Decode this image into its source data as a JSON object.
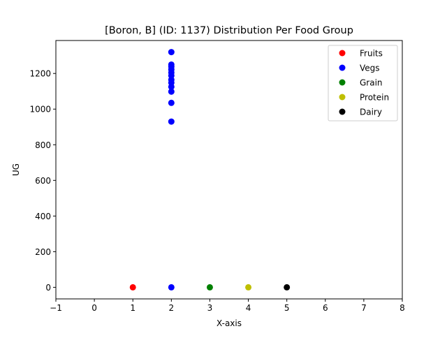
{
  "chart_data": {
    "type": "scatter",
    "title": "[Boron, B] (ID: 1137) Distribution Per Food Group",
    "xlabel": "X-axis",
    "ylabel": "UG",
    "xlim": [
      -1,
      8
    ],
    "ylim": [
      -65,
      1385
    ],
    "xticks": [
      -1,
      0,
      1,
      2,
      3,
      4,
      5,
      6,
      7,
      8
    ],
    "yticks": [
      0,
      200,
      400,
      600,
      800,
      1000,
      1200
    ],
    "grid": false,
    "legend_position": "top-right",
    "series": [
      {
        "name": "Fruits",
        "color": "#ff0000",
        "x": [
          1
        ],
        "y": [
          0
        ]
      },
      {
        "name": "Vegs",
        "color": "#0000ff",
        "x": [
          2,
          2,
          2,
          2,
          2,
          2,
          2,
          2,
          2,
          2,
          2,
          2,
          2
        ],
        "y": [
          0,
          930,
          1035,
          1098,
          1125,
          1148,
          1165,
          1188,
          1205,
          1222,
          1238,
          1250,
          1320
        ]
      },
      {
        "name": "Grain",
        "color": "#008000",
        "x": [
          3
        ],
        "y": [
          0
        ]
      },
      {
        "name": "Protein",
        "color": "#bfbf00",
        "x": [
          4
        ],
        "y": [
          0
        ]
      },
      {
        "name": "Dairy",
        "color": "#000000",
        "x": [
          5
        ],
        "y": [
          0
        ]
      }
    ]
  }
}
